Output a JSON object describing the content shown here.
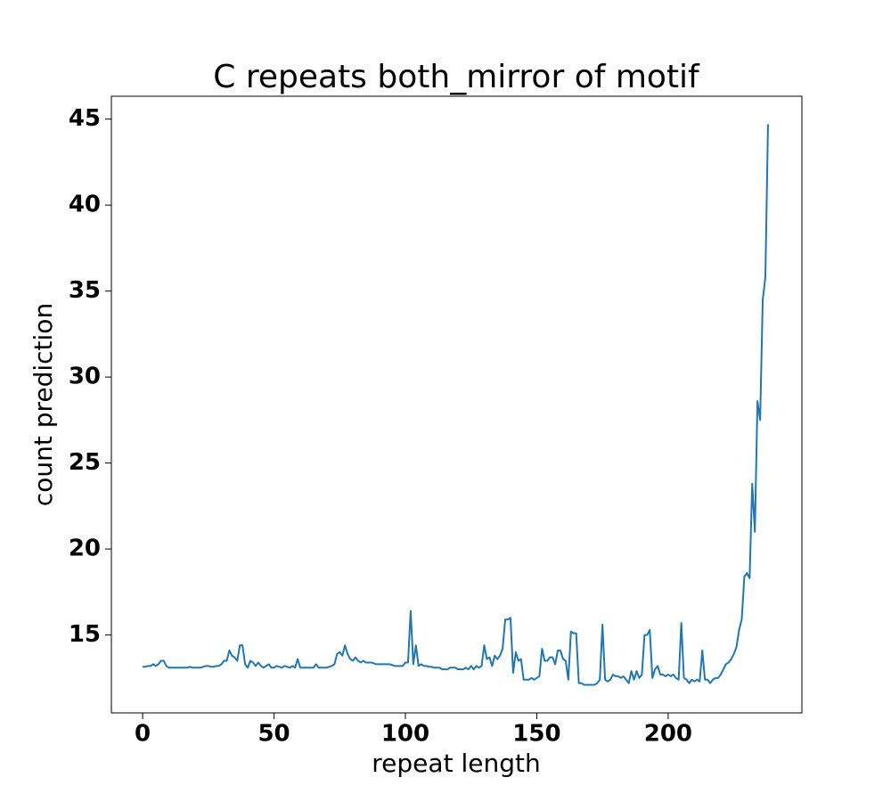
{
  "chart_data": {
    "type": "line",
    "title": "C repeats both_mirror of motif",
    "xlabel": "repeat length",
    "ylabel": "count prediction",
    "series": [
      {
        "color": "#1f77b4",
        "values": [
          13.15,
          13.15,
          13.2,
          13.2,
          13.3,
          13.2,
          13.3,
          13.5,
          13.5,
          13.2,
          13.1,
          13.1,
          13.1,
          13.1,
          13.1,
          13.1,
          13.1,
          13.1,
          13.15,
          13.1,
          13.1,
          13.1,
          13.1,
          13.15,
          13.2,
          13.2,
          13.15,
          13.15,
          13.2,
          13.2,
          13.3,
          13.5,
          13.5,
          14.1,
          13.8,
          13.7,
          13.5,
          14.4,
          14.4,
          13.3,
          13.1,
          13.5,
          13.4,
          13.2,
          13.4,
          13.2,
          13.1,
          13.2,
          13.3,
          13.1,
          13.1,
          13.2,
          13.15,
          13.1,
          13.2,
          13.15,
          13.1,
          13.2,
          13.1,
          13.6,
          13.1,
          13.1,
          13.1,
          13.1,
          13.1,
          13.1,
          13.3,
          13.1,
          13.1,
          13.1,
          13.1,
          13.15,
          13.2,
          13.3,
          13.9,
          14.0,
          13.8,
          14.4,
          13.9,
          13.6,
          13.5,
          13.7,
          13.5,
          13.4,
          13.5,
          13.4,
          13.4,
          13.4,
          13.35,
          13.3,
          13.3,
          13.3,
          13.3,
          13.3,
          13.3,
          13.25,
          13.2,
          13.2,
          13.2,
          13.2,
          13.4,
          13.4,
          16.4,
          13.3,
          14.4,
          13.2,
          13.3,
          13.2,
          13.2,
          13.15,
          13.15,
          13.1,
          13.1,
          13.1,
          13.0,
          13.0,
          13.0,
          13.1,
          13.1,
          13.1,
          13.0,
          13.0,
          13.0,
          13.1,
          13.0,
          13.2,
          13.0,
          13.2,
          13.1,
          13.2,
          14.4,
          13.6,
          13.7,
          13.2,
          13.8,
          13.6,
          13.8,
          14.2,
          15.9,
          15.9,
          16.0,
          12.8,
          14.0,
          13.5,
          13.6,
          12.4,
          12.4,
          12.4,
          12.5,
          12.4,
          12.5,
          12.6,
          14.2,
          13.5,
          13.5,
          13.7,
          13.7,
          13.3,
          14.1,
          14.1,
          13.6,
          13.5,
          12.4,
          15.2,
          15.1,
          15.1,
          12.2,
          12.2,
          12.1,
          12.1,
          12.1,
          12.1,
          12.1,
          12.2,
          12.4,
          15.6,
          12.4,
          12.3,
          12.4,
          12.7,
          12.6,
          12.6,
          12.5,
          12.6,
          12.4,
          12.2,
          12.9,
          12.4,
          12.9,
          12.5,
          12.7,
          15.0,
          15.0,
          15.3,
          12.5,
          13.0,
          13.2,
          12.7,
          12.7,
          12.6,
          12.7,
          12.6,
          12.7,
          12.5,
          12.4,
          15.7,
          12.5,
          12.4,
          12.2,
          12.4,
          12.3,
          12.4,
          12.3,
          14.1,
          12.4,
          12.4,
          12.2,
          12.4,
          12.5,
          12.5,
          12.7,
          13.0,
          13.3,
          13.4,
          13.6,
          13.9,
          14.3,
          15.3,
          15.9,
          18.4,
          18.6,
          18.3,
          23.8,
          21.0,
          28.6,
          27.5,
          34.5,
          35.8,
          44.7
        ]
      }
    ],
    "xlim": [
      -11.9,
      250.9
    ],
    "xticks": [
      0,
      50,
      100,
      150,
      200
    ],
    "ylim": [
      10.47,
      46.33
    ],
    "yticks": [
      15,
      20,
      25,
      30,
      35,
      40,
      45
    ]
  }
}
